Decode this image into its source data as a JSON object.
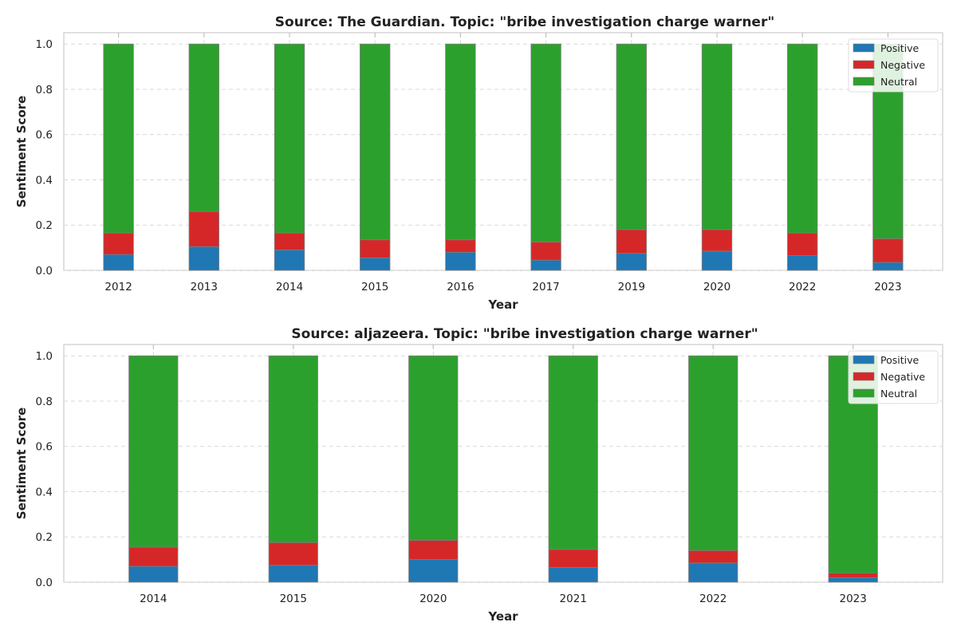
{
  "chart_data": [
    {
      "type": "bar",
      "stacked": true,
      "title": "Source: The Guardian. Topic: \"bribe investigation charge warner\"",
      "xlabel": "Year",
      "ylabel": "Sentiment Score",
      "ylim": [
        0,
        1.05
      ],
      "yticks": [
        "0.0",
        "0.2",
        "0.4",
        "0.6",
        "0.8",
        "1.0"
      ],
      "grid": true,
      "legend_position": "top-right",
      "categories": [
        "2012",
        "2013",
        "2014",
        "2015",
        "2016",
        "2017",
        "2019",
        "2020",
        "2022",
        "2023"
      ],
      "series": [
        {
          "name": "Positive",
          "color": "#1f77b4",
          "values": [
            0.07,
            0.105,
            0.09,
            0.055,
            0.08,
            0.045,
            0.075,
            0.085,
            0.065,
            0.035
          ]
        },
        {
          "name": "Negative",
          "color": "#d62728",
          "values": [
            0.095,
            0.155,
            0.075,
            0.08,
            0.055,
            0.08,
            0.105,
            0.095,
            0.1,
            0.105
          ]
        },
        {
          "name": "Neutral",
          "color": "#2ca02c",
          "values": [
            0.835,
            0.74,
            0.835,
            0.865,
            0.865,
            0.875,
            0.82,
            0.82,
            0.835,
            0.86
          ]
        }
      ]
    },
    {
      "type": "bar",
      "stacked": true,
      "title": "Source: aljazeera. Topic: \"bribe investigation charge warner\"",
      "xlabel": "Year",
      "ylabel": "Sentiment Score",
      "ylim": [
        0,
        1.05
      ],
      "yticks": [
        "0.0",
        "0.2",
        "0.4",
        "0.6",
        "0.8",
        "1.0"
      ],
      "grid": true,
      "legend_position": "top-right",
      "categories": [
        "2014",
        "2015",
        "2020",
        "2021",
        "2022",
        "2023"
      ],
      "series": [
        {
          "name": "Positive",
          "color": "#1f77b4",
          "values": [
            0.07,
            0.075,
            0.1,
            0.065,
            0.085,
            0.02
          ]
        },
        {
          "name": "Negative",
          "color": "#d62728",
          "values": [
            0.085,
            0.1,
            0.085,
            0.08,
            0.055,
            0.02
          ]
        },
        {
          "name": "Neutral",
          "color": "#2ca02c",
          "values": [
            0.845,
            0.825,
            0.815,
            0.855,
            0.86,
            0.96
          ]
        }
      ]
    }
  ]
}
